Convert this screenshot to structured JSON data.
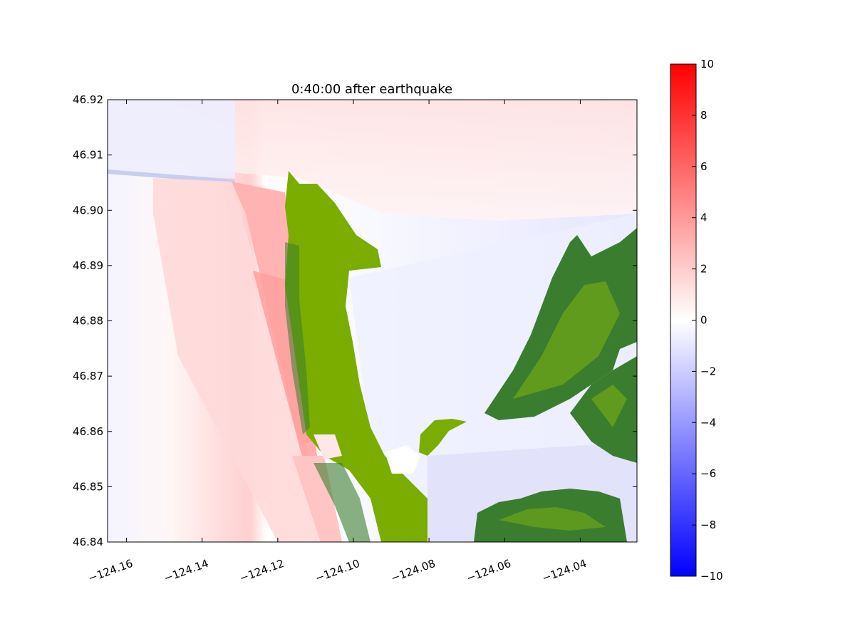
{
  "chart_data": {
    "type": "heatmap",
    "title": "0:40:00 after earthquake",
    "xlabel": "",
    "ylabel": "",
    "xlim": [
      -124.165,
      -124.025
    ],
    "ylim": [
      46.84,
      46.92
    ],
    "x_ticks": [
      -124.16,
      -124.14,
      -124.12,
      -124.1,
      -124.08,
      -124.06,
      -124.04
    ],
    "x_tick_labels": [
      "−124.16",
      "−124.14",
      "−124.12",
      "−124.10",
      "−124.08",
      "−124.06",
      "−124.04"
    ],
    "y_ticks": [
      46.84,
      46.85,
      46.86,
      46.87,
      46.88,
      46.89,
      46.9,
      46.91,
      46.92
    ],
    "y_tick_labels": [
      "46.84",
      "46.85",
      "46.86",
      "46.87",
      "46.88",
      "46.89",
      "46.90",
      "46.91",
      "46.92"
    ],
    "colorbar": {
      "range": [
        -10,
        10
      ],
      "ticks": [
        10,
        8,
        6,
        4,
        2,
        0,
        -2,
        -4,
        -6,
        -8,
        -10
      ],
      "tick_labels": [
        "10",
        "8",
        "6",
        "4",
        "2",
        "0",
        "−2",
        "−4",
        "−6",
        "−8",
        "−10"
      ],
      "colormap": "bwr",
      "colors": {
        "min": "#0000ff",
        "mid": "#ffffff",
        "max": "#ff0000"
      }
    },
    "land_colors": {
      "low": "#7aad00",
      "high": "#3a7d2e"
    },
    "grid": false
  }
}
